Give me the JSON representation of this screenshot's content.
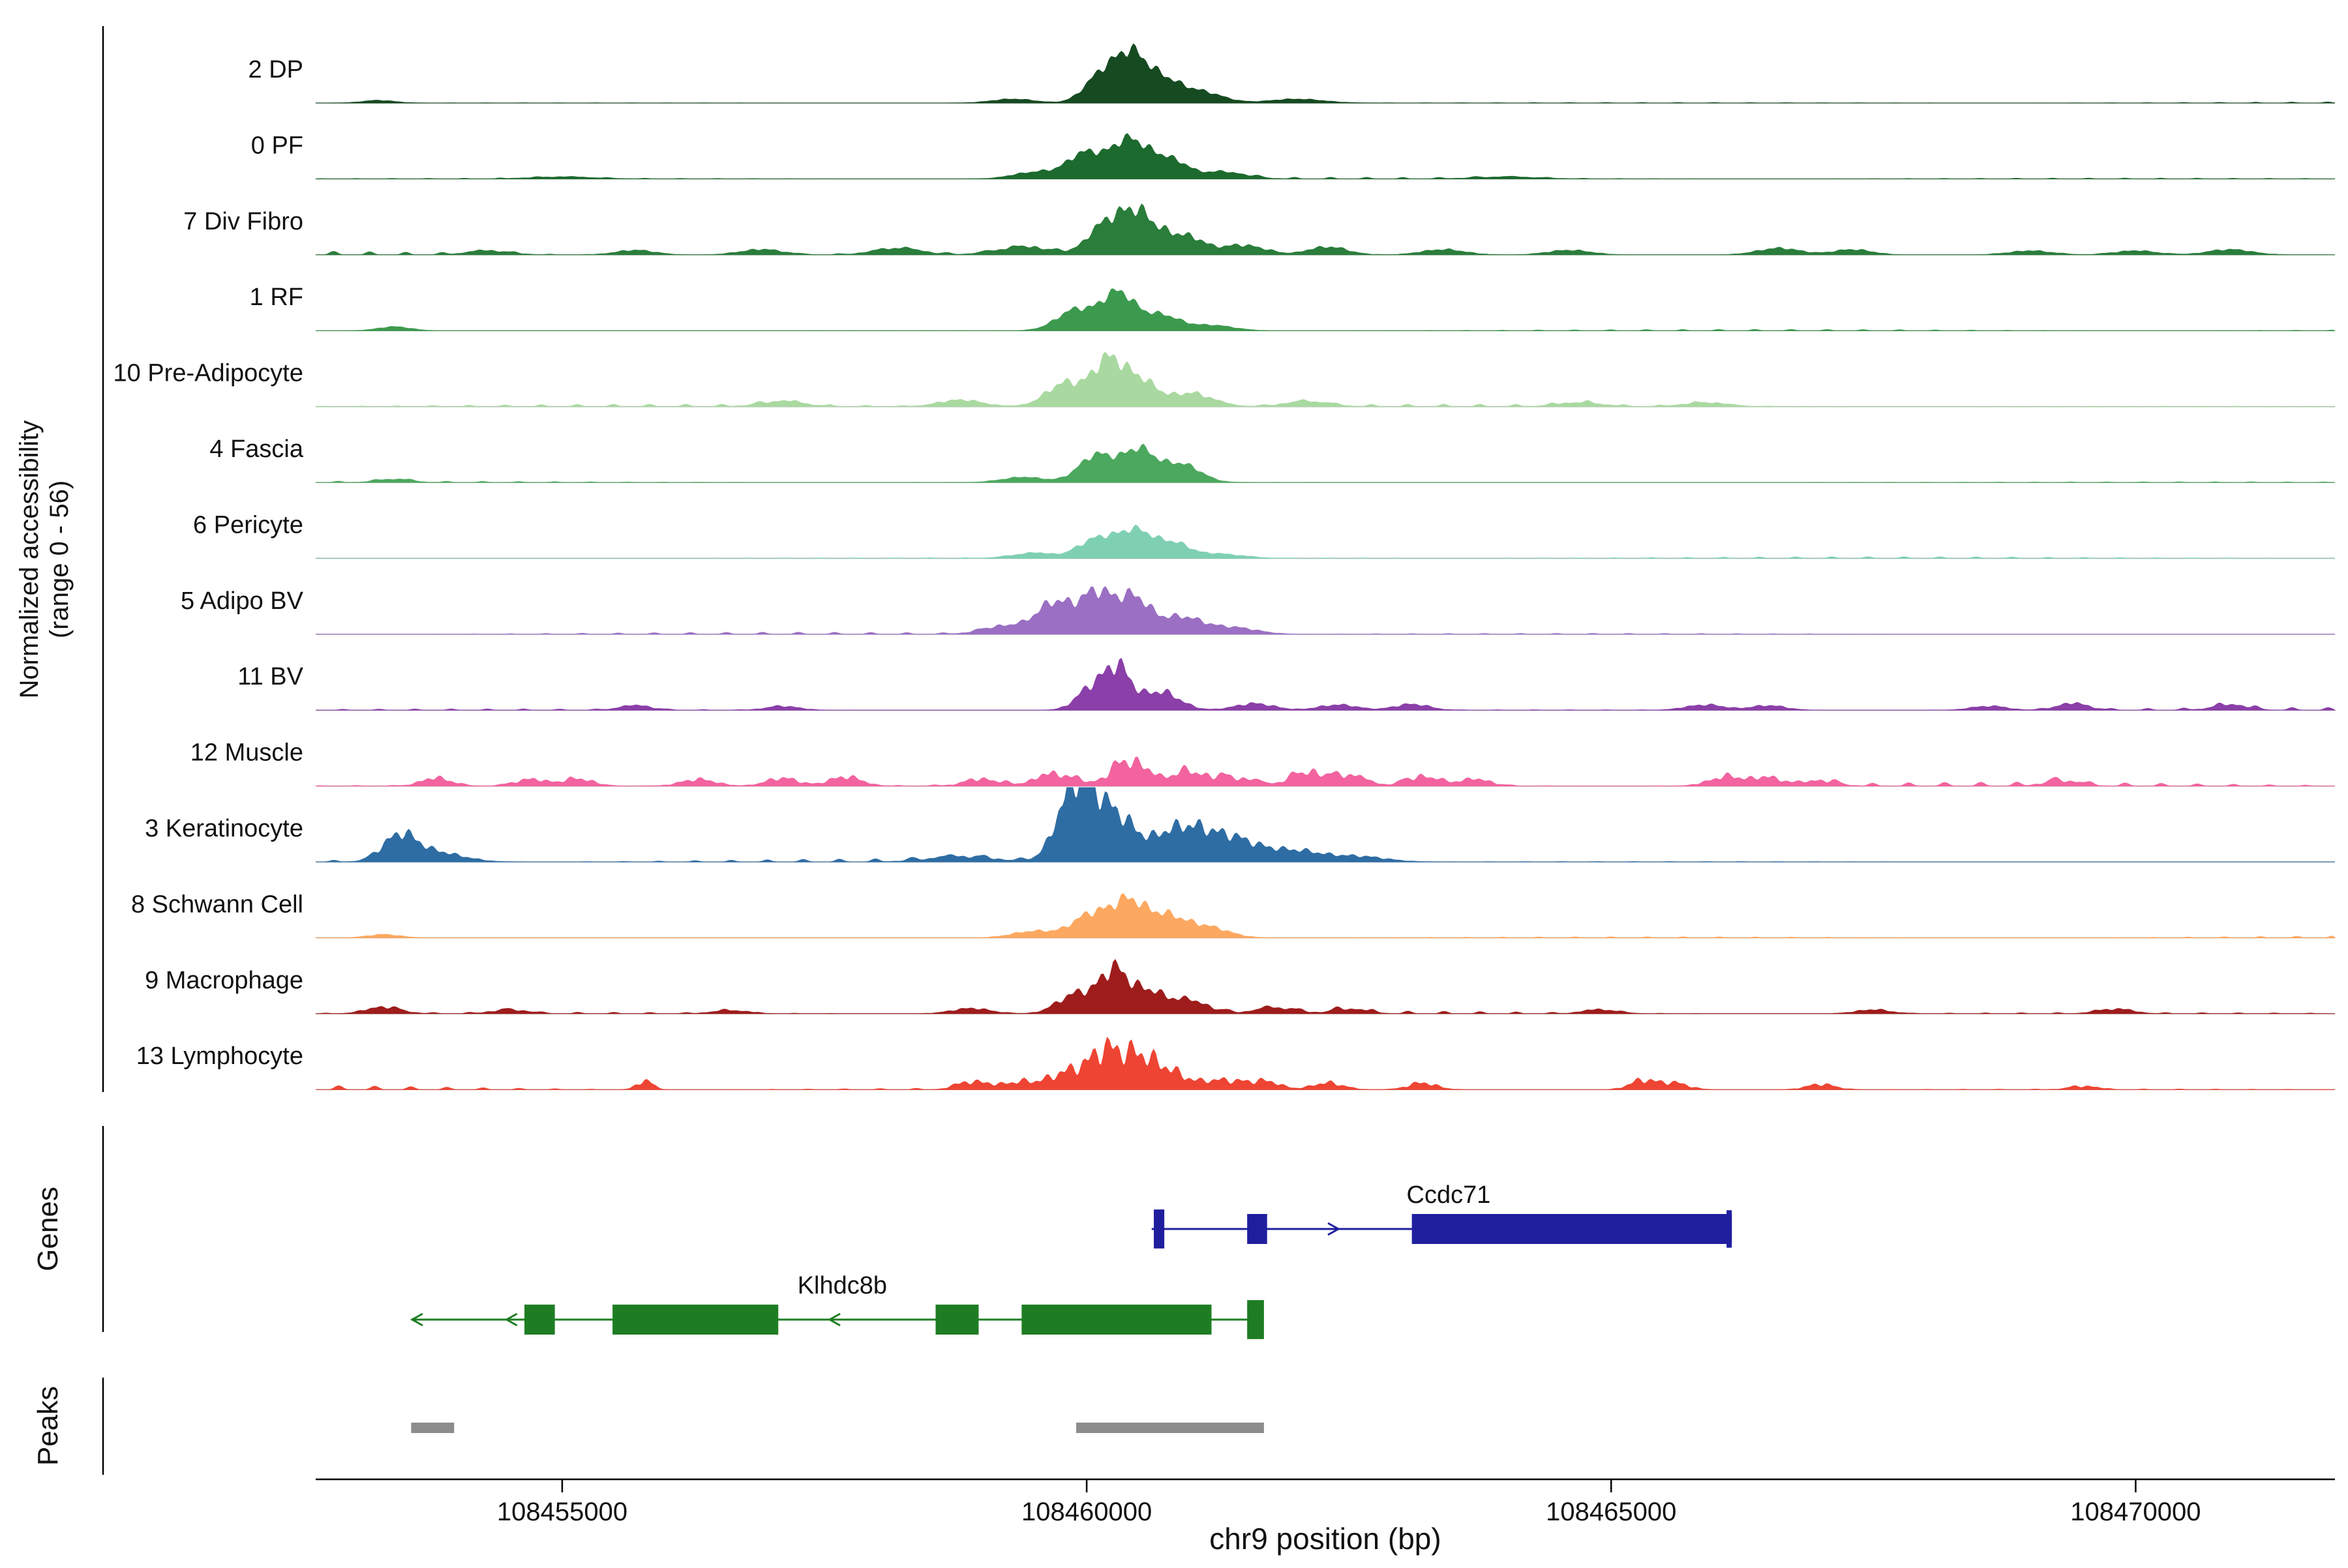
{
  "y_axis": {
    "label_line1": "Normalized accessibility",
    "label_line2": "(range 0 - 56)"
  },
  "sections": {
    "genes_label": "Genes",
    "peaks_label": "Peaks"
  },
  "x_axis": {
    "title": "chr9 position (bp)",
    "ticks": [
      108455000,
      108460000,
      108465000,
      108470000
    ],
    "tick_labels": [
      "108455000",
      "108460000",
      "108465000",
      "108470000"
    ]
  },
  "chart_data": {
    "type": "area",
    "title": "",
    "xlabel": "chr9 position (bp)",
    "ylabel": "Normalized accessibility (range 0 - 56)",
    "region": {
      "chrom": "chr9",
      "start": 108452650,
      "end": 108471900
    },
    "ylim": [
      0,
      56
    ],
    "signal_peaks_format": "[bp_center, height_units_0_56, width_bp]",
    "tracks": [
      {
        "name": "2 DP",
        "color": "#164a21",
        "noise": 0.15,
        "jag": 0.15,
        "signal_peaks": [
          [
            108460150,
            22,
            160
          ],
          [
            108460420,
            30,
            140
          ],
          [
            108460700,
            18,
            180
          ],
          [
            108461100,
            8,
            200
          ],
          [
            108453250,
            2,
            150
          ],
          [
            108459300,
            3,
            200
          ],
          [
            108462000,
            3,
            250
          ]
        ]
      },
      {
        "name": "0 PF",
        "color": "#1d6a2e",
        "noise": 0.2,
        "jag": 0.15,
        "signal_peaks": [
          [
            108460000,
            20,
            180
          ],
          [
            108460400,
            27,
            150
          ],
          [
            108460750,
            16,
            180
          ],
          [
            108459500,
            5,
            200
          ],
          [
            108461300,
            5,
            220
          ],
          [
            108455000,
            1.5,
            300
          ],
          [
            108464000,
            1.5,
            300
          ]
        ]
      },
      {
        "name": "7 Div Fibro",
        "color": "#2a7d3b",
        "noise": 0.5,
        "jag": 0.2,
        "signal_peaks": [
          [
            108460200,
            24,
            170
          ],
          [
            108460500,
            27,
            150
          ],
          [
            108460900,
            15,
            200
          ],
          [
            108459400,
            6,
            250
          ],
          [
            108461500,
            7,
            200
          ],
          [
            108462300,
            6,
            180
          ],
          [
            108454300,
            3,
            200
          ],
          [
            108455700,
            3.5,
            180
          ],
          [
            108456900,
            4,
            200
          ],
          [
            108458200,
            5,
            220
          ],
          [
            108463400,
            4,
            200
          ],
          [
            108464600,
            3.5,
            200
          ],
          [
            108466600,
            5,
            200
          ],
          [
            108467300,
            4,
            180
          ],
          [
            108469000,
            3,
            200
          ],
          [
            108470000,
            3,
            200
          ],
          [
            108470900,
            4,
            200
          ]
        ]
      },
      {
        "name": "1 RF",
        "color": "#3c9a4e",
        "noise": 0.2,
        "jag": 0.15,
        "signal_peaks": [
          [
            108459900,
            16,
            180
          ],
          [
            108460300,
            28,
            150
          ],
          [
            108460700,
            12,
            180
          ],
          [
            108453400,
            3,
            150
          ],
          [
            108461200,
            4,
            200
          ]
        ]
      },
      {
        "name": "10 Pre-Adipocyte",
        "color": "#a9d9a0",
        "noise": 0.35,
        "jag": 0.2,
        "signal_peaks": [
          [
            108459800,
            18,
            180
          ],
          [
            108460200,
            33,
            140
          ],
          [
            108460500,
            20,
            160
          ],
          [
            108461000,
            10,
            200
          ],
          [
            108457100,
            4,
            200
          ],
          [
            108458800,
            5,
            200
          ],
          [
            108462100,
            4,
            200
          ],
          [
            108464700,
            3,
            200
          ],
          [
            108465900,
            3,
            200
          ]
        ]
      },
      {
        "name": "4 Fascia",
        "color": "#4ca85e",
        "noise": 0.2,
        "jag": 0.15,
        "signal_peaks": [
          [
            108460100,
            21,
            170
          ],
          [
            108460500,
            24,
            150
          ],
          [
            108460900,
            14,
            180
          ],
          [
            108453400,
            2.5,
            150
          ],
          [
            108459400,
            4,
            200
          ]
        ]
      },
      {
        "name": "6 Pericyte",
        "color": "#7fd0b2",
        "noise": 0.2,
        "jag": 0.15,
        "signal_peaks": [
          [
            108460100,
            15,
            170
          ],
          [
            108460450,
            19,
            150
          ],
          [
            108460800,
            12,
            180
          ],
          [
            108459500,
            4,
            200
          ],
          [
            108461300,
            3,
            200
          ]
        ]
      },
      {
        "name": "5 Adipo BV",
        "color": "#9b6fc3",
        "noise": 0.25,
        "jag": 0.2,
        "signal_peaks": [
          [
            108459700,
            24,
            180
          ],
          [
            108460100,
            30,
            150
          ],
          [
            108460450,
            27,
            150
          ],
          [
            108460900,
            13,
            200
          ],
          [
            108461400,
            5,
            220
          ],
          [
            108459200,
            6,
            200
          ]
        ]
      },
      {
        "name": "11 BV",
        "color": "#8b3fa8",
        "noise": 0.4,
        "jag": 0.25,
        "signal_peaks": [
          [
            108460300,
            30,
            120
          ],
          [
            108460050,
            17,
            140
          ],
          [
            108460700,
            14,
            180
          ],
          [
            108455700,
            3.5,
            150
          ],
          [
            108457100,
            3,
            150
          ],
          [
            108461600,
            5,
            180
          ],
          [
            108462400,
            4,
            180
          ],
          [
            108463100,
            4.5,
            160
          ],
          [
            108465900,
            4,
            180
          ],
          [
            108466500,
            3.5,
            160
          ],
          [
            108468600,
            3,
            160
          ],
          [
            108469400,
            5,
            150
          ],
          [
            108470900,
            4,
            160
          ]
        ]
      },
      {
        "name": "12 Muscle",
        "color": "#f2639f",
        "noise": 0.6,
        "jag": 0.35,
        "signal_peaks": [
          [
            108460400,
            19,
            160
          ],
          [
            108459700,
            9,
            180
          ],
          [
            108460950,
            10,
            180
          ],
          [
            108453800,
            6,
            140
          ],
          [
            108454700,
            5,
            150
          ],
          [
            108455150,
            5.5,
            140
          ],
          [
            108456300,
            5,
            160
          ],
          [
            108457100,
            6,
            150
          ],
          [
            108457700,
            7,
            150
          ],
          [
            108459000,
            5,
            160
          ],
          [
            108461400,
            6,
            180
          ],
          [
            108462100,
            10,
            160
          ],
          [
            108462500,
            8,
            150
          ],
          [
            108463200,
            7,
            160
          ],
          [
            108463700,
            5,
            150
          ],
          [
            108466100,
            7,
            160
          ],
          [
            108466500,
            6,
            150
          ],
          [
            108467000,
            4,
            150
          ],
          [
            108469300,
            4,
            160
          ]
        ]
      },
      {
        "name": "3 Keratinocyte",
        "color": "#2e6da4",
        "noise": 0.5,
        "jag": 0.25,
        "signal_peaks": [
          [
            108459900,
            56,
            170
          ],
          [
            108460250,
            34,
            200
          ],
          [
            108460900,
            25,
            250
          ],
          [
            108461400,
            16,
            250
          ],
          [
            108453450,
            19,
            160
          ],
          [
            108453800,
            7,
            250
          ],
          [
            108458800,
            4,
            300
          ],
          [
            108462000,
            8,
            250
          ],
          [
            108462600,
            4,
            250
          ]
        ]
      },
      {
        "name": "8 Schwann Cell",
        "color": "#fda860",
        "noise": 0.25,
        "jag": 0.2,
        "signal_peaks": [
          [
            108460050,
            18,
            180
          ],
          [
            108460400,
            25,
            150
          ],
          [
            108460750,
            16,
            180
          ],
          [
            108461150,
            8,
            200
          ],
          [
            108459500,
            5,
            200
          ],
          [
            108453300,
            2.5,
            150
          ]
        ]
      },
      {
        "name": "9 Macrophage",
        "color": "#9e1c1c",
        "noise": 0.35,
        "jag": 0.25,
        "signal_peaks": [
          [
            108459900,
            15,
            170
          ],
          [
            108460250,
            30,
            130
          ],
          [
            108460550,
            16,
            160
          ],
          [
            108460950,
            10,
            200
          ],
          [
            108453300,
            5,
            160
          ],
          [
            108454500,
            3,
            160
          ],
          [
            108456600,
            2.5,
            160
          ],
          [
            108458900,
            4,
            180
          ],
          [
            108461800,
            4.5,
            180
          ],
          [
            108462500,
            3.5,
            160
          ],
          [
            108464900,
            3,
            160
          ],
          [
            108467500,
            3,
            160
          ],
          [
            108469800,
            3.5,
            160
          ]
        ]
      },
      {
        "name": "13 Lymphocyte",
        "color": "#ee4433",
        "noise": 0.55,
        "jag": 0.4,
        "signal_peaks": [
          [
            108460200,
            26,
            140
          ],
          [
            108460500,
            22,
            150
          ],
          [
            108459900,
            14,
            160
          ],
          [
            108460800,
            12,
            170
          ],
          [
            108461300,
            7,
            180
          ],
          [
            108455790,
            7,
            70
          ],
          [
            108458900,
            6,
            130
          ],
          [
            108459300,
            5,
            140
          ],
          [
            108459600,
            5,
            130
          ],
          [
            108461700,
            6,
            140
          ],
          [
            108462300,
            5,
            140
          ],
          [
            108463200,
            5,
            130
          ],
          [
            108465300,
            7,
            120
          ],
          [
            108465600,
            5,
            130
          ],
          [
            108467000,
            4,
            130
          ],
          [
            108469500,
            2.5,
            130
          ]
        ]
      }
    ],
    "genes": [
      {
        "name": "Ccdc71",
        "color": "#1f1f9e",
        "strand": "+",
        "row": 0,
        "line": [
          108460620,
          108466150
        ],
        "exons": [
          [
            108460640,
            108460740,
            1.3
          ],
          [
            108461530,
            108461720,
            1.0
          ],
          [
            108463100,
            108466150,
            1.0
          ],
          [
            108466100,
            108466150,
            1.25
          ]
        ],
        "arrows": [
          108462350
        ],
        "label_bp": 108463450
      },
      {
        "name": "Klhdc8b",
        "color": "#1e7d23",
        "strand": "-",
        "row": 1,
        "line": [
          108453560,
          108461690
        ],
        "exons": [
          [
            108454640,
            108454930,
            1.0
          ],
          [
            108455480,
            108457060,
            1.0
          ],
          [
            108458560,
            108458970,
            1.0
          ],
          [
            108459380,
            108461190,
            1.0
          ],
          [
            108461530,
            108461690,
            1.3
          ]
        ],
        "arrows": [
          108453620,
          108454520,
          108457600
        ],
        "label_bp": 108457670
      }
    ],
    "peak_regions": [
      [
        108453560,
        108453970
      ],
      [
        108459900,
        108461690
      ]
    ]
  }
}
